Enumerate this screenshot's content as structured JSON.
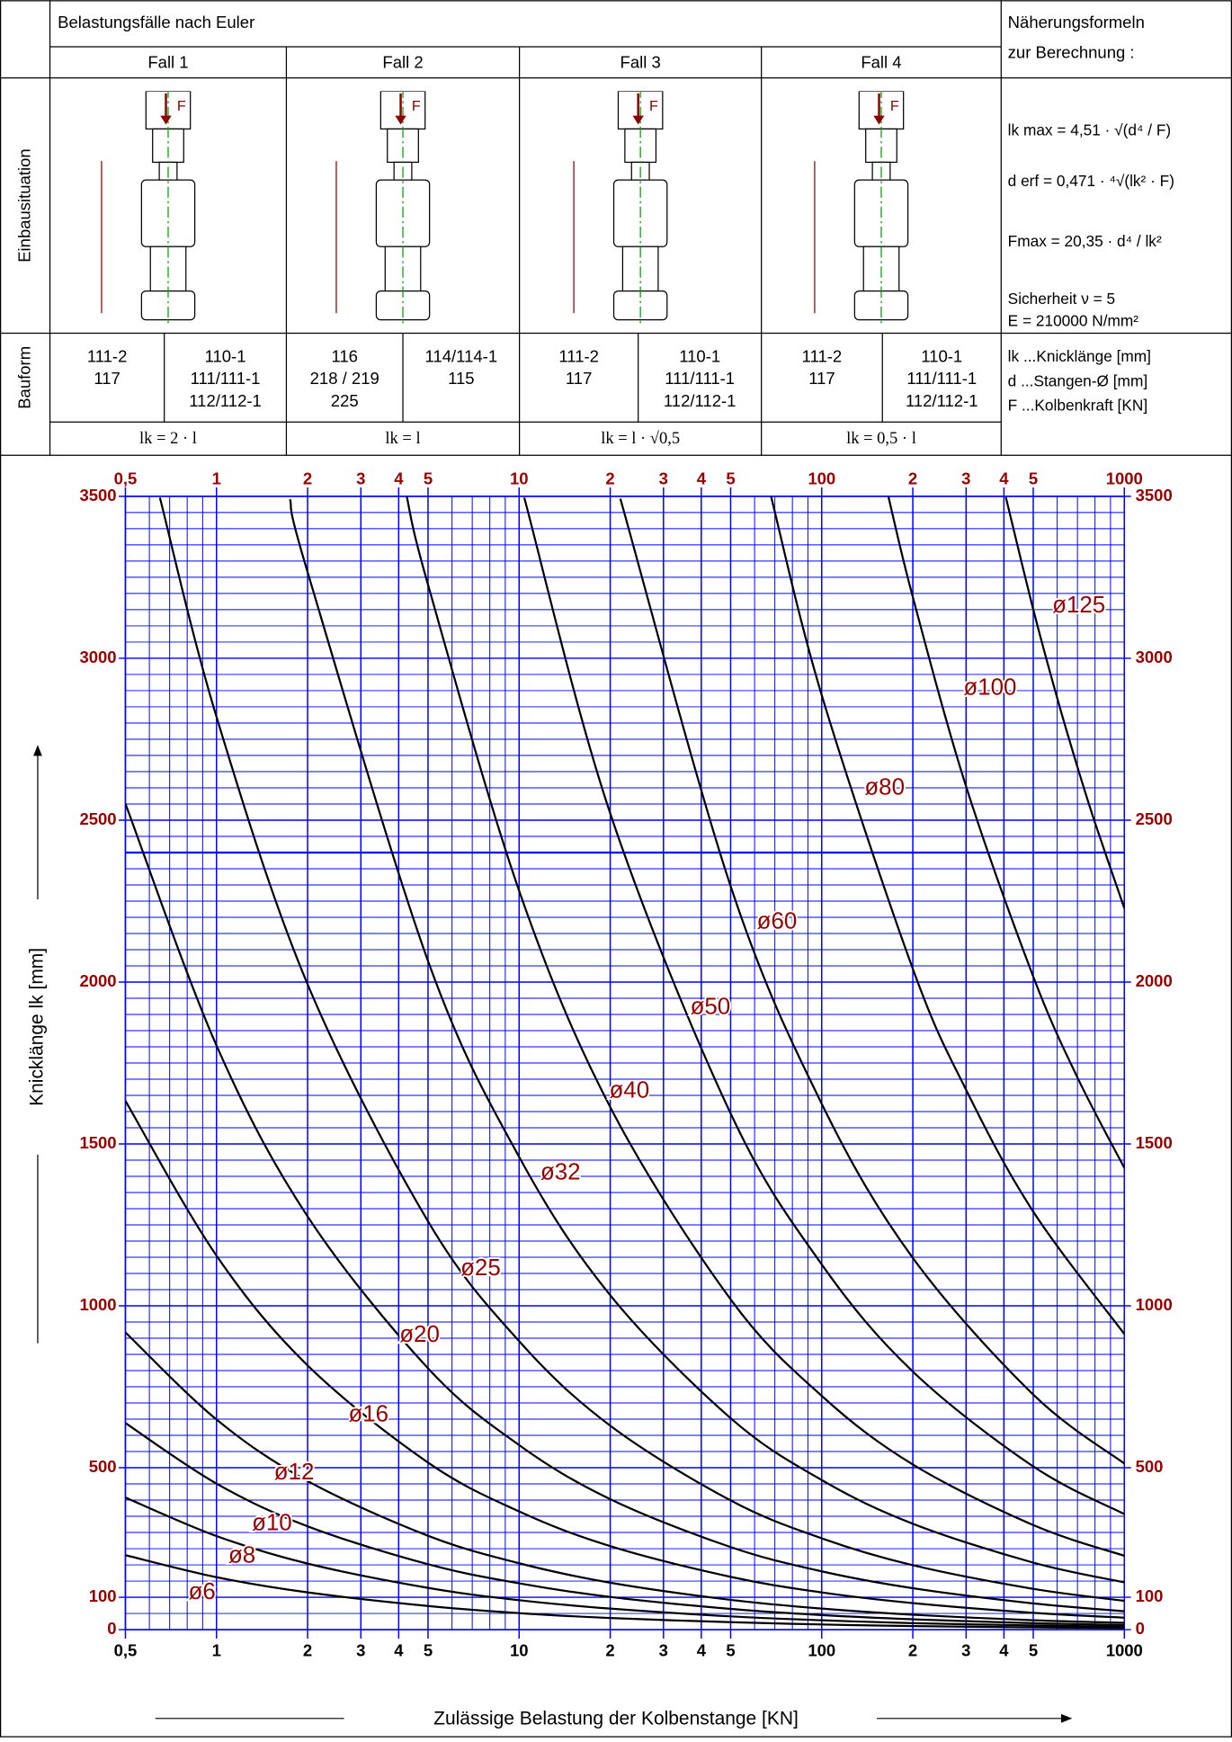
{
  "header": {
    "title": "Belastungsfälle nach Euler",
    "cases": [
      "Fall 1",
      "Fall 2",
      "Fall 3",
      "Fall 4"
    ],
    "side_title": [
      "Näherungsformeln",
      "zur Berechnung :"
    ]
  },
  "row_labels": {
    "installation": "Einbausituation",
    "design": "Bauform"
  },
  "force_label": "F",
  "design": [
    [
      [
        "111-2",
        "117"
      ],
      [
        "110-1",
        "111/111-1",
        "112/112-1"
      ]
    ],
    [
      [
        "116",
        "218 / 219",
        "225"
      ],
      [
        "114/114-1",
        "115"
      ]
    ],
    [
      [
        "111-2",
        "117"
      ],
      [
        "110-1",
        "111/111-1",
        "112/112-1"
      ]
    ],
    [
      [
        "111-2",
        "117"
      ],
      [
        "110-1",
        "111/111-1",
        "112/112-1"
      ]
    ]
  ],
  "lk_formulas": [
    "lk = 2 · l",
    "lk = l",
    "lk = l · √0,5",
    "lk = 0,5 · l"
  ],
  "formulas": [
    "lk max = 4,51 · √(d⁴ / F)",
    "d erf = 0,471 · ⁴√(lk² · F)",
    "Fmax = 20,35 · d⁴ / lk²"
  ],
  "constants": [
    "Sicherheit ν = 5",
    "E = 210000 N/mm²"
  ],
  "legend_notes": [
    "lk ...Knicklänge  [mm]",
    "d ...Stangen-Ø  [mm]",
    "F ...Kolbenkraft [KN]"
  ],
  "chart_data": {
    "type": "line",
    "x_label": "Zulässige Belastung der Kolbenstange [KN]",
    "y_label": "Knicklänge lk [mm]",
    "xlim": [
      0.5,
      1000
    ],
    "ylim": [
      0,
      3500
    ],
    "log_x": true,
    "grid": true,
    "grid_color": "#0000ff",
    "label_color": "#990000",
    "reference_line": 2400,
    "xticks": [
      {
        "value": 0.5,
        "label": "0,5"
      },
      1,
      2,
      3,
      4,
      5,
      10,
      {
        "value": 20,
        "label": "2"
      },
      {
        "value": 30,
        "label": "3"
      },
      {
        "value": 40,
        "label": "4"
      },
      {
        "value": 50,
        "label": "5"
      },
      100,
      {
        "value": 200,
        "label": "2"
      },
      {
        "value": 300,
        "label": "3"
      },
      {
        "value": 400,
        "label": "4"
      },
      {
        "value": 500,
        "label": "5"
      },
      1000
    ],
    "yticks": [
      0,
      100,
      500,
      1000,
      1500,
      2000,
      2500,
      3000,
      3500
    ],
    "series": [
      {
        "name": "ø6",
        "color": "#000000",
        "x": [
          0.5,
          1,
          2,
          5,
          10,
          20,
          50,
          100,
          200,
          500,
          1000
        ],
        "values": [
          230,
          162,
          115,
          73,
          51,
          36,
          23,
          16,
          11,
          7,
          5
        ]
      },
      {
        "name": "ø8",
        "color": "#000000",
        "x": [
          0.5,
          1,
          2,
          5,
          10,
          20,
          50,
          100,
          200,
          500,
          1000
        ],
        "values": [
          408,
          289,
          204,
          129,
          91,
          65,
          41,
          29,
          20,
          13,
          9
        ]
      },
      {
        "name": "ø10",
        "color": "#000000",
        "x": [
          0.5,
          1,
          2,
          5,
          10,
          20,
          50,
          100,
          200,
          500,
          1000
        ],
        "values": [
          638,
          451,
          319,
          202,
          143,
          101,
          64,
          45,
          32,
          20,
          14
        ]
      },
      {
        "name": "ø12",
        "color": "#000000",
        "x": [
          0.5,
          1,
          2,
          5,
          10,
          20,
          50,
          100,
          200,
          500,
          1000
        ],
        "values": [
          918,
          649,
          459,
          290,
          205,
          145,
          92,
          65,
          46,
          29,
          21
        ]
      },
      {
        "name": "ø16",
        "color": "#000000",
        "x": [
          0.5,
          1,
          2,
          5,
          10,
          20,
          50,
          100,
          200,
          500,
          1000
        ],
        "values": [
          1633,
          1155,
          816,
          516,
          365,
          258,
          163,
          115,
          82,
          52,
          37
        ]
      },
      {
        "name": "ø20",
        "color": "#000000",
        "x": [
          0.5,
          1,
          2,
          5,
          10,
          20,
          50,
          100,
          200,
          500,
          1000
        ],
        "values": [
          2551,
          1804,
          1276,
          807,
          570,
          403,
          255,
          180,
          128,
          81,
          57
        ]
      },
      {
        "name": "ø25",
        "color": "#000000",
        "x": [
          0.65,
          1,
          2,
          5,
          10,
          20,
          50,
          100,
          200,
          500,
          1000
        ],
        "values": [
          3496,
          2819,
          1993,
          1261,
          891,
          630,
          399,
          282,
          199,
          126,
          89
        ]
      },
      {
        "name": "ø32",
        "color": "#000000",
        "x": [
          1.75,
          2,
          5,
          10,
          20,
          50,
          100,
          200,
          500,
          1000
        ],
        "values": [
          3491,
          3266,
          2065,
          1460,
          1033,
          653,
          462,
          327,
          207,
          146
        ]
      },
      {
        "name": "ø40",
        "color": "#000000",
        "x": [
          4.25,
          5,
          10,
          20,
          50,
          100,
          200,
          500,
          1000
        ],
        "values": [
          3500,
          3227,
          2282,
          1614,
          1020,
          722,
          510,
          323,
          228
        ]
      },
      {
        "name": "ø50",
        "color": "#000000",
        "x": [
          10.4,
          20,
          50,
          100,
          200,
          500,
          1000
        ],
        "values": [
          3496,
          2521,
          1594,
          1128,
          797,
          504,
          357
        ]
      },
      {
        "name": "ø60",
        "color": "#000000",
        "x": [
          21.6,
          50,
          100,
          200,
          500,
          1000
        ],
        "values": [
          3493,
          2296,
          1624,
          1148,
          726,
          513
        ]
      },
      {
        "name": "ø80",
        "color": "#000000",
        "x": [
          68,
          100,
          200,
          300,
          500,
          1000
        ],
        "values": [
          3500,
          2886,
          2041,
          1667,
          1291,
          913
        ]
      },
      {
        "name": "ø100",
        "color": "#000000",
        "x": [
          166,
          200,
          300,
          500,
          700,
          1000
        ],
        "values": [
          3500,
          3189,
          2604,
          2017,
          1705,
          1426
        ]
      },
      {
        "name": "ø125",
        "color": "#000000",
        "x": [
          406,
          500,
          600,
          700,
          800,
          1000
        ],
        "values": [
          3497,
          3151,
          2877,
          2664,
          2492,
          2228
        ]
      }
    ]
  }
}
